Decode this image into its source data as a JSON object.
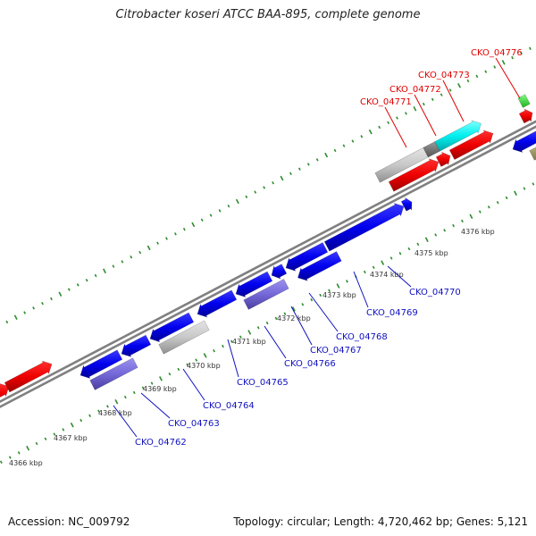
{
  "title": "Citrobacter koseri ATCC BAA-895, complete genome",
  "footer": {
    "accession": "Accession: NC_009792",
    "topology": "Topology: circular; Length: 4,720,462 bp; Genes: 5,121"
  },
  "colors": {
    "forward_label": "#e00000",
    "reverse_label": "#1010c0",
    "backbone": "#808080",
    "ticks": "#2e8b2e"
  },
  "forward_labels": [
    "CKO_04771",
    "CKO_04772",
    "CKO_04773",
    "CKO_04776"
  ],
  "reverse_labels": [
    "CKO_04762",
    "CKO_04763",
    "CKO_04764",
    "CKO_04765",
    "CKO_04766",
    "CKO_04767",
    "CKO_04768",
    "CKO_04769",
    "CKO_04770"
  ],
  "kbp_labels": [
    "4366 kbp",
    "4367 kbp",
    "4368 kbp",
    "4369 kbp",
    "4370 kbp",
    "4371 kbp",
    "4372 kbp",
    "4373 kbp",
    "4374 kbp",
    "4375 kbp",
    "4376 kbp"
  ]
}
